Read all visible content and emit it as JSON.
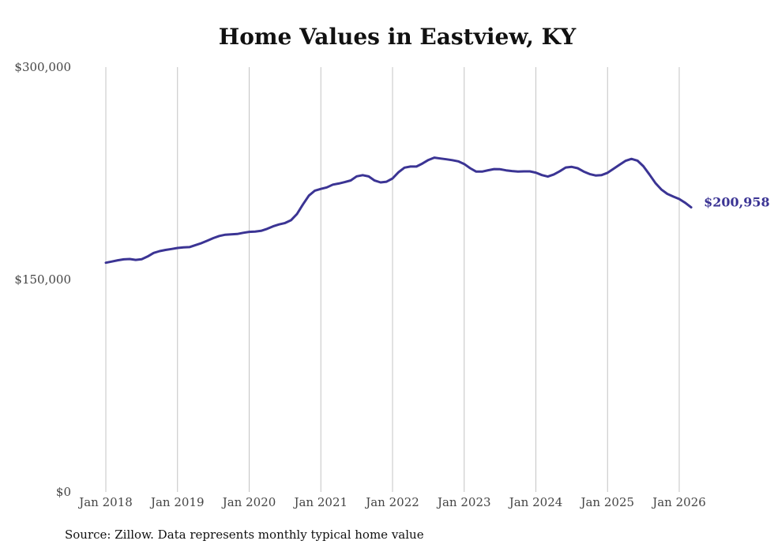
{
  "chart_data": {
    "type": "line",
    "title": "Home Values in Eastview, KY",
    "xlabel": "",
    "ylabel": "",
    "ylim": [
      0,
      300000
    ],
    "x_range": [
      "2018-01",
      "2026-03"
    ],
    "y_ticks": [
      {
        "value": 0,
        "label": "$0"
      },
      {
        "value": 150000,
        "label": "$150,000"
      },
      {
        "value": 300000,
        "label": "$300,000"
      }
    ],
    "x_ticks": [
      {
        "date": "2018-01",
        "label": "Jan 2018"
      },
      {
        "date": "2019-01",
        "label": "Jan 2019"
      },
      {
        "date": "2020-01",
        "label": "Jan 2020"
      },
      {
        "date": "2021-01",
        "label": "Jan 2021"
      },
      {
        "date": "2022-01",
        "label": "Jan 2022"
      },
      {
        "date": "2023-01",
        "label": "Jan 2023"
      },
      {
        "date": "2024-01",
        "label": "Jan 2024"
      },
      {
        "date": "2025-01",
        "label": "Jan 2025"
      },
      {
        "date": "2026-01",
        "label": "Jan 2026"
      }
    ],
    "grid": "vertical",
    "line_color": "#3b3494",
    "end_label": "$200,958",
    "series": [
      {
        "x": [
          "2018-01",
          "2018-02",
          "2018-03",
          "2018-04",
          "2018-05",
          "2018-06",
          "2018-07",
          "2018-08",
          "2018-09",
          "2018-10",
          "2018-11",
          "2018-12",
          "2019-01",
          "2019-02",
          "2019-03",
          "2019-04",
          "2019-05",
          "2019-06",
          "2019-07",
          "2019-08",
          "2019-09",
          "2019-10",
          "2019-11",
          "2019-12",
          "2020-01",
          "2020-02",
          "2020-03",
          "2020-04",
          "2020-05",
          "2020-06",
          "2020-07",
          "2020-08",
          "2020-09",
          "2020-10",
          "2020-11",
          "2020-12",
          "2021-01",
          "2021-02",
          "2021-03",
          "2021-04",
          "2021-05",
          "2021-06",
          "2021-07",
          "2021-08",
          "2021-09",
          "2021-10",
          "2021-11",
          "2021-12",
          "2022-01",
          "2022-02",
          "2022-03",
          "2022-04",
          "2022-05",
          "2022-06",
          "2022-07",
          "2022-08",
          "2022-09",
          "2022-10",
          "2022-11",
          "2022-12",
          "2023-01",
          "2023-02",
          "2023-03",
          "2023-04",
          "2023-05",
          "2023-06",
          "2023-07",
          "2023-08",
          "2023-09",
          "2023-10",
          "2023-11",
          "2023-12",
          "2024-01",
          "2024-02",
          "2024-03",
          "2024-04",
          "2024-05",
          "2024-06",
          "2024-07",
          "2024-08",
          "2024-09",
          "2024-10",
          "2024-11",
          "2024-12",
          "2025-01",
          "2025-02",
          "2025-03",
          "2025-04",
          "2025-05",
          "2025-06",
          "2025-07",
          "2025-08",
          "2025-09",
          "2025-10",
          "2025-11",
          "2025-12",
          "2026-01",
          "2026-02",
          "2026-03"
        ],
        "values": [
          161900,
          162700,
          163600,
          164300,
          164500,
          163900,
          164400,
          166300,
          168800,
          170100,
          170900,
          171600,
          172300,
          172700,
          172900,
          174300,
          175700,
          177500,
          179300,
          180800,
          181700,
          181900,
          182200,
          183000,
          183700,
          183900,
          184400,
          185800,
          187600,
          188900,
          189900,
          191900,
          196300,
          203100,
          209300,
          212800,
          214000,
          215100,
          217000,
          217800,
          218800,
          220000,
          222900,
          223700,
          222800,
          219900,
          218600,
          219100,
          221400,
          225800,
          229000,
          229800,
          229800,
          231900,
          234400,
          236100,
          235500,
          234900,
          234300,
          233500,
          231600,
          228600,
          226200,
          226200,
          227200,
          228000,
          227900,
          227100,
          226600,
          226200,
          226400,
          226400,
          225500,
          223800,
          222700,
          224200,
          226500,
          229100,
          229600,
          228600,
          226300,
          224500,
          223500,
          223800,
          225400,
          228200,
          231100,
          233800,
          235200,
          234000,
          230000,
          224300,
          218200,
          213600,
          210500,
          208600,
          206900,
          204200,
          200958
        ]
      }
    ]
  },
  "source_note": "Source: Zillow. Data represents monthly typical home value"
}
